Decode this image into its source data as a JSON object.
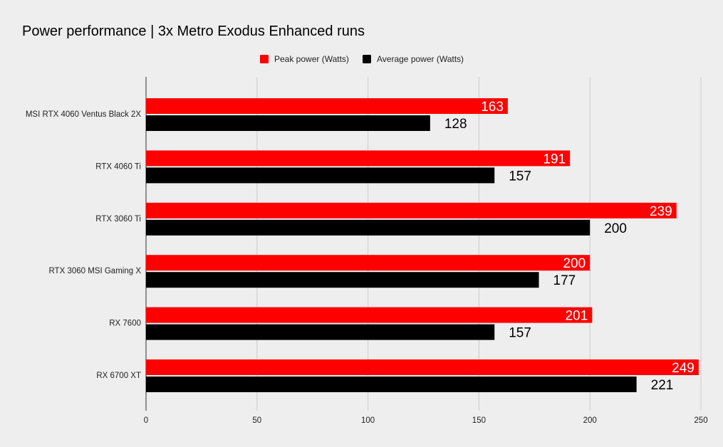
{
  "chart_data": {
    "type": "bar",
    "orientation": "horizontal",
    "title": "Power performance | 3x Metro Exodus Enhanced runs",
    "xlabel": "",
    "ylabel": "",
    "xlim": [
      0,
      250
    ],
    "x_ticks": [
      0,
      50,
      100,
      150,
      200,
      250
    ],
    "grid": true,
    "legend_position": "top-center",
    "categories": [
      "MSI RTX 4060 Ventus Black 2X",
      "RTX 4060 Ti",
      "RTX 3060 Ti",
      "RTX 3060 MSI Gaming X",
      "RX 7600",
      "RX 6700 XT"
    ],
    "series": [
      {
        "name": "Peak power (Watts)",
        "color": "#ff0000",
        "label_inside": true,
        "values": [
          163,
          191,
          239,
          200,
          201,
          249
        ]
      },
      {
        "name": "Average power (Watts)",
        "color": "#000000",
        "label_inside": false,
        "values": [
          128,
          157,
          200,
          177,
          157,
          221
        ]
      }
    ]
  }
}
